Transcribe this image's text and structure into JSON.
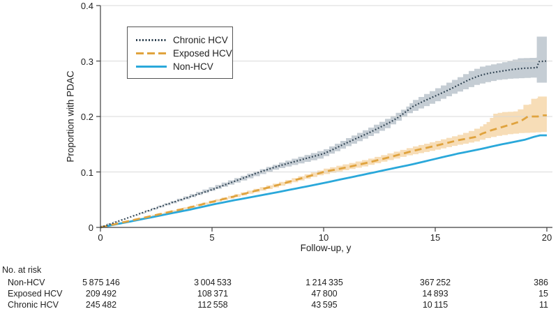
{
  "figure": {
    "y_axis_label": "Proportion with PDAC",
    "x_axis_label": "Follow-up, y"
  },
  "legend": {
    "items": [
      {
        "label": "Chronic HCV",
        "style": "dotted",
        "color": "#2E4150"
      },
      {
        "label": "Exposed HCV",
        "style": "dashed",
        "color": "#E0A33E"
      },
      {
        "label": "Non-HCV",
        "style": "solid",
        "color": "#2AA8DA"
      }
    ]
  },
  "chart_data": {
    "type": "line",
    "title": "",
    "xlabel": "Follow-up, y",
    "ylabel": "Proportion with PDAC",
    "xlim": [
      0,
      20
    ],
    "ylim": [
      0,
      0.4
    ],
    "x_ticks": [
      "0",
      "5",
      "10",
      "15",
      "20"
    ],
    "y_ticks": [
      "0",
      "0.1",
      "0.2",
      "0.3",
      "0.4"
    ],
    "grid": "horizontal",
    "legend_position": "upper-left-inside",
    "colors": {
      "grid": "#d6d6d6",
      "axis": "#3f3f3f",
      "chronic_line": "#2E4150",
      "chronic_band": "#C5CDD4",
      "exposed_line": "#E0A33E",
      "exposed_band": "#F7DDB7",
      "non_line": "#2AA8DA"
    },
    "series": [
      {
        "name": "Chronic HCV",
        "style": "dotted",
        "color": "#2E4150",
        "band_color": "#C5CDD4",
        "points": [
          [
            0,
            0
          ],
          [
            1,
            0.014
          ],
          [
            2,
            0.028
          ],
          [
            3,
            0.042
          ],
          [
            4,
            0.055
          ],
          [
            5,
            0.068
          ],
          [
            6,
            0.083
          ],
          [
            7,
            0.098
          ],
          [
            8,
            0.111
          ],
          [
            9,
            0.122
          ],
          [
            10,
            0.133
          ],
          [
            10.5,
            0.142
          ],
          [
            11,
            0.152
          ],
          [
            11.5,
            0.161
          ],
          [
            12,
            0.17
          ],
          [
            12.5,
            0.18
          ],
          [
            13,
            0.19
          ],
          [
            13.4,
            0.2
          ],
          [
            14,
            0.218
          ],
          [
            14.5,
            0.228
          ],
          [
            15,
            0.237
          ],
          [
            15.5,
            0.246
          ],
          [
            16,
            0.256
          ],
          [
            16.5,
            0.266
          ],
          [
            17,
            0.274
          ],
          [
            17.4,
            0.278
          ],
          [
            18,
            0.282
          ],
          [
            18.5,
            0.285
          ],
          [
            19,
            0.287
          ],
          [
            19.55,
            0.288
          ],
          [
            19.65,
            0.299
          ],
          [
            20,
            0.3
          ]
        ],
        "band_upper": [
          [
            0,
            0.001
          ],
          [
            2,
            0.031
          ],
          [
            4,
            0.06
          ],
          [
            6,
            0.089
          ],
          [
            8,
            0.117
          ],
          [
            10,
            0.141
          ],
          [
            11,
            0.161
          ],
          [
            12,
            0.18
          ],
          [
            13,
            0.201
          ],
          [
            13.7,
            0.218
          ],
          [
            14,
            0.23
          ],
          [
            15,
            0.251
          ],
          [
            16,
            0.271
          ],
          [
            16.5,
            0.282
          ],
          [
            17,
            0.29
          ],
          [
            17.5,
            0.294
          ],
          [
            18,
            0.298
          ],
          [
            18.7,
            0.305
          ],
          [
            19.5,
            0.306
          ],
          [
            19.55,
            0.344
          ],
          [
            20,
            0.344
          ]
        ],
        "band_lower": [
          [
            0,
            0
          ],
          [
            2,
            0.025
          ],
          [
            4,
            0.051
          ],
          [
            6,
            0.077
          ],
          [
            8,
            0.104
          ],
          [
            10,
            0.124
          ],
          [
            11,
            0.142
          ],
          [
            12,
            0.16
          ],
          [
            13,
            0.179
          ],
          [
            14,
            0.206
          ],
          [
            15,
            0.223
          ],
          [
            16,
            0.241
          ],
          [
            17,
            0.257
          ],
          [
            17.5,
            0.262
          ],
          [
            18,
            0.266
          ],
          [
            18.5,
            0.268
          ],
          [
            19,
            0.269
          ],
          [
            19.55,
            0.27
          ],
          [
            19.7,
            0.261
          ],
          [
            20,
            0.261
          ]
        ]
      },
      {
        "name": "Exposed HCV",
        "style": "dashed",
        "color": "#E0A33E",
        "band_color": "#F7DDB7",
        "points": [
          [
            0,
            0
          ],
          [
            2,
            0.018
          ],
          [
            4,
            0.036
          ],
          [
            5,
            0.046
          ],
          [
            6,
            0.056
          ],
          [
            8,
            0.077
          ],
          [
            10,
            0.1
          ],
          [
            11,
            0.108
          ],
          [
            12,
            0.117
          ],
          [
            13,
            0.127
          ],
          [
            14,
            0.138
          ],
          [
            15,
            0.147
          ],
          [
            16,
            0.157
          ],
          [
            16.8,
            0.163
          ],
          [
            17.1,
            0.169
          ],
          [
            17.5,
            0.175
          ],
          [
            18,
            0.181
          ],
          [
            18.5,
            0.187
          ],
          [
            18.8,
            0.191
          ],
          [
            19,
            0.196
          ],
          [
            19.15,
            0.2
          ],
          [
            19.6,
            0.2
          ],
          [
            19.75,
            0.202
          ],
          [
            20,
            0.202
          ]
        ],
        "band_upper": [
          [
            0,
            0.001
          ],
          [
            2,
            0.02
          ],
          [
            4,
            0.039
          ],
          [
            6,
            0.06
          ],
          [
            8,
            0.082
          ],
          [
            10,
            0.106
          ],
          [
            12,
            0.124
          ],
          [
            14,
            0.146
          ],
          [
            15,
            0.156
          ],
          [
            16,
            0.167
          ],
          [
            16.5,
            0.174
          ],
          [
            17,
            0.182
          ],
          [
            17.3,
            0.19
          ],
          [
            17.6,
            0.205
          ],
          [
            18,
            0.208
          ],
          [
            18.5,
            0.209
          ],
          [
            18.7,
            0.213
          ],
          [
            18.95,
            0.221
          ],
          [
            19.2,
            0.222
          ],
          [
            19.3,
            0.232
          ],
          [
            19.55,
            0.233
          ],
          [
            19.6,
            0.236
          ],
          [
            20,
            0.236
          ]
        ],
        "band_lower": [
          [
            0,
            0
          ],
          [
            2,
            0.016
          ],
          [
            4,
            0.033
          ],
          [
            6,
            0.052
          ],
          [
            8,
            0.072
          ],
          [
            10,
            0.094
          ],
          [
            12,
            0.11
          ],
          [
            14,
            0.13
          ],
          [
            15,
            0.138
          ],
          [
            16,
            0.147
          ],
          [
            17,
            0.155
          ],
          [
            17.5,
            0.161
          ],
          [
            18,
            0.165
          ],
          [
            18.5,
            0.168
          ],
          [
            19,
            0.17
          ],
          [
            19.5,
            0.171
          ],
          [
            20,
            0.172
          ]
        ]
      },
      {
        "name": "Non-HCV",
        "style": "solid",
        "color": "#2AA8DA",
        "points": [
          [
            0,
            0
          ],
          [
            2,
            0.016
          ],
          [
            4,
            0.032
          ],
          [
            5,
            0.041
          ],
          [
            6,
            0.049
          ],
          [
            8,
            0.064
          ],
          [
            10,
            0.08
          ],
          [
            12,
            0.097
          ],
          [
            14,
            0.114
          ],
          [
            16,
            0.133
          ],
          [
            17,
            0.141
          ],
          [
            18,
            0.15
          ],
          [
            19,
            0.158
          ],
          [
            19.4,
            0.163
          ],
          [
            19.7,
            0.166
          ],
          [
            20,
            0.166
          ]
        ]
      }
    ]
  },
  "risk_table": {
    "title": "No. at risk",
    "columns": [
      "0",
      "5",
      "10",
      "15",
      "20"
    ],
    "rows": [
      {
        "label": "Non-HCV",
        "values": [
          "5 875 146",
          "3 004 533",
          "1 214 335",
          "367 252",
          "386"
        ]
      },
      {
        "label": "Exposed HCV",
        "values": [
          "209 492",
          "108 371",
          "47 800",
          "14 893",
          "15"
        ]
      },
      {
        "label": "Chronic HCV",
        "values": [
          "245 482",
          "112 558",
          "43 595",
          "10 115",
          "11"
        ]
      }
    ]
  }
}
